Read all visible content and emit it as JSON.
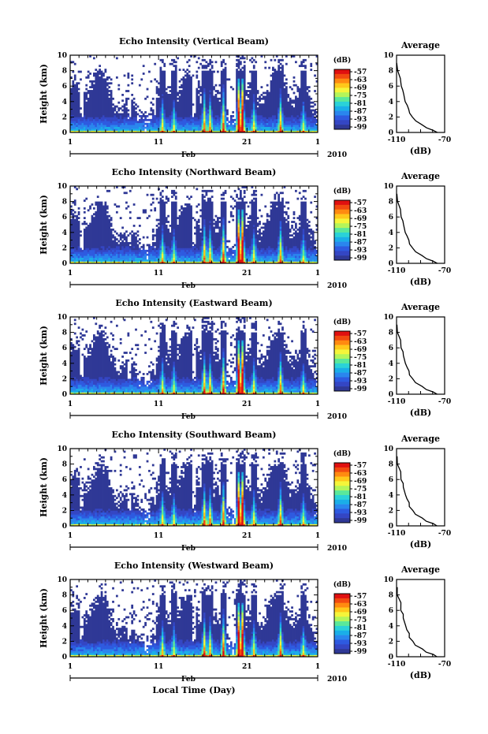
{
  "chart_data": {
    "type": "heatmap",
    "month_label": "Feb",
    "year_label": "2010",
    "xlabel_bottom": "Local Time (Day)",
    "ylabel": "Height (km)",
    "ylim": [
      0,
      10
    ],
    "yticks": [
      0,
      2,
      4,
      6,
      8,
      10
    ],
    "xticks": [
      "1",
      "11",
      "21",
      "1"
    ],
    "colorbar": {
      "unit": "(dB)",
      "labels": [
        "-57",
        "-63",
        "-69",
        "-75",
        "-81",
        "-87",
        "-93",
        "-99"
      ],
      "colors": [
        "#e01010",
        "#f24a10",
        "#ff8a10",
        "#ffc81a",
        "#f5f53a",
        "#b4f55a",
        "#5ae89a",
        "#2ad2d8",
        "#1aaee8",
        "#2a86ee",
        "#2e5ae0",
        "#3446c4",
        "#2f3896"
      ]
    },
    "average_panel": {
      "title": "Average",
      "xlabel": "(dB)",
      "xticks": [
        "-110",
        "-70"
      ],
      "xlim": [
        -110,
        -70
      ],
      "yticks": [
        0,
        2,
        4,
        6,
        8,
        10
      ],
      "profile": [
        {
          "h": 0.0,
          "db": -76
        },
        {
          "h": 0.3,
          "db": -80
        },
        {
          "h": 0.6,
          "db": -85
        },
        {
          "h": 1.0,
          "db": -89
        },
        {
          "h": 1.5,
          "db": -94
        },
        {
          "h": 2.0,
          "db": -97
        },
        {
          "h": 2.5,
          "db": -99
        },
        {
          "h": 3.0,
          "db": -100
        },
        {
          "h": 3.5,
          "db": -101
        },
        {
          "h": 4.0,
          "db": -103
        },
        {
          "h": 5.0,
          "db": -104
        },
        {
          "h": 5.5,
          "db": -105
        },
        {
          "h": 6.0,
          "db": -106
        },
        {
          "h": 7.0,
          "db": -107
        },
        {
          "h": 8.0,
          "db": -109
        },
        {
          "h": 9.0,
          "db": -110
        }
      ]
    },
    "panels": [
      {
        "title": "Echo Intensity (Vertical Beam)"
      },
      {
        "title": "Echo Intensity (Northward Beam)"
      },
      {
        "title": "Echo Intensity (Eastward Beam)"
      },
      {
        "title": "Echo Intensity (Southward Beam)"
      },
      {
        "title": "Echo Intensity (Westward Beam)"
      }
    ]
  }
}
